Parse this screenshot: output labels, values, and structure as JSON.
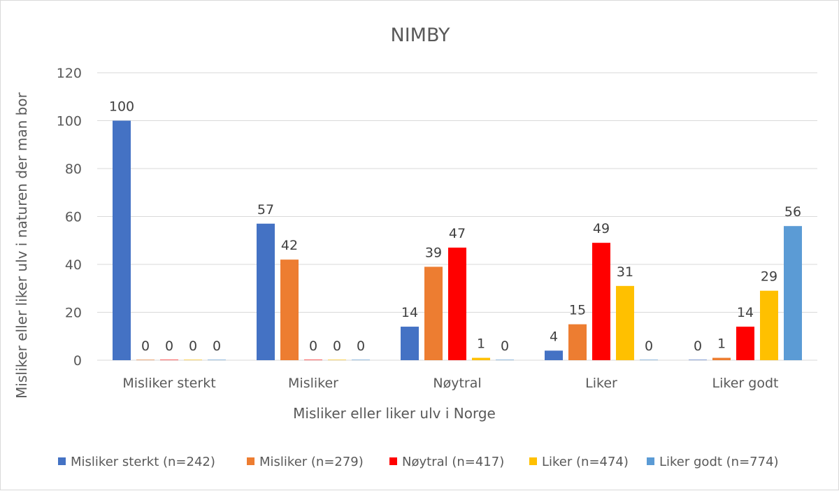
{
  "chart_data": {
    "type": "bar",
    "title": "NIMBY",
    "xlabel": "Misliker eller liker ulv i Norge",
    "ylabel": "Misliker eller liker ulv i naturen der man bor",
    "ylim": [
      0,
      120
    ],
    "yticks": [
      0,
      20,
      40,
      60,
      80,
      100,
      120
    ],
    "grid": true,
    "legend_position": "bottom",
    "categories": [
      "Misliker sterkt",
      "Misliker",
      "Nøytral",
      "Liker",
      "Liker godt"
    ],
    "series": [
      {
        "name": "Misliker sterkt (n=242)",
        "color": "#4472C4",
        "values": [
          100,
          57,
          14,
          4,
          0
        ],
        "labels": [
          "100",
          "57",
          "14",
          "4",
          "0"
        ]
      },
      {
        "name": "Misliker (n=279)",
        "color": "#ED7D31",
        "values": [
          0,
          42,
          39,
          15,
          1
        ],
        "labels": [
          "0",
          "42",
          "39",
          "15",
          "1"
        ]
      },
      {
        "name": "Nøytral (n=417)",
        "color": "#FF0000",
        "values": [
          0,
          0,
          47,
          49,
          14
        ],
        "labels": [
          "0",
          "0",
          "47",
          "49",
          "14"
        ]
      },
      {
        "name": "Liker (n=474)",
        "color": "#FFC000",
        "values": [
          0,
          0,
          1,
          31,
          29
        ],
        "labels": [
          "0",
          "0",
          "1",
          "31",
          "29"
        ]
      },
      {
        "name": "Liker godt (n=774)",
        "color": "#5B9BD5",
        "values": [
          0,
          0,
          0,
          0,
          56
        ],
        "labels": [
          "0",
          "0",
          "0",
          "0",
          "56"
        ]
      }
    ]
  }
}
